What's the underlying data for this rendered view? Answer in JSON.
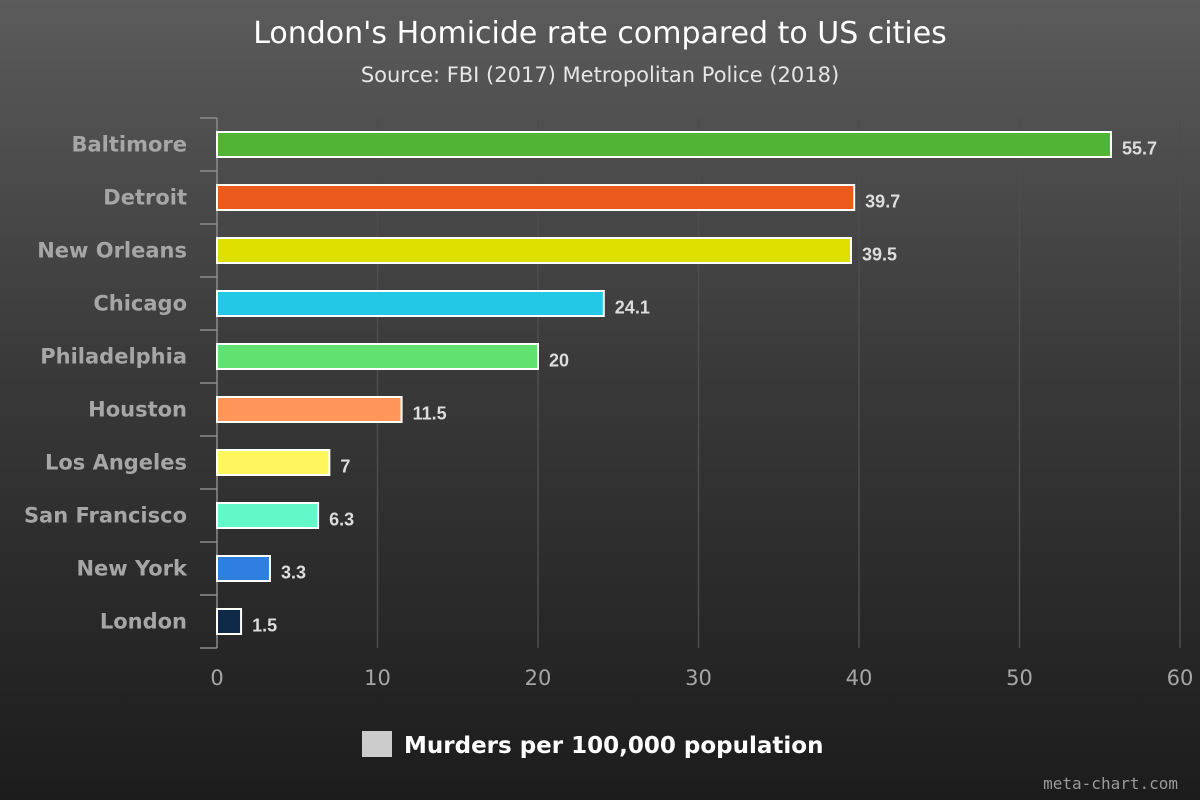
{
  "chart_data": {
    "type": "bar",
    "orientation": "horizontal",
    "title": "London's Homicide rate compared to US cities",
    "subtitle": "Source: FBI (2017) Metropolitan Police (2018)",
    "categories": [
      "Baltimore",
      "Detroit",
      "New Orleans",
      "Chicago",
      "Philadelphia",
      "Houston",
      "Los Angeles",
      "San Francisco",
      "New York",
      "London"
    ],
    "series": [
      {
        "name": "Murders per 100,000 population",
        "values": [
          55.7,
          39.7,
          39.5,
          24.1,
          20,
          11.5,
          7,
          6.3,
          3.3,
          1.5
        ],
        "data_labels": [
          "55.7",
          "39.7",
          "39.5",
          "24.1",
          "20",
          "11.5",
          "7",
          "6.3",
          "3.3",
          "1.5"
        ],
        "colors": [
          "#52b435",
          "#ec5a1d",
          "#dfe000",
          "#22c8e4",
          "#61e16f",
          "#ff9558",
          "#fff55d",
          "#63f8c8",
          "#2f7fe0",
          "#0f2a49"
        ]
      }
    ],
    "xlim": [
      0,
      60
    ],
    "x_ticks": [
      0,
      10,
      20,
      30,
      40,
      50,
      60
    ],
    "x_tick_labels": [
      "0",
      "10",
      "20",
      "30",
      "40",
      "50",
      "60"
    ],
    "grid": true,
    "legend": {
      "position": "bottom-center",
      "color": "#cccccc"
    },
    "colors": {
      "grid": "#4d4d4d",
      "axis": "#8c8c8c",
      "bar_border": "#ffffff"
    }
  },
  "watermark": "meta-chart.com"
}
